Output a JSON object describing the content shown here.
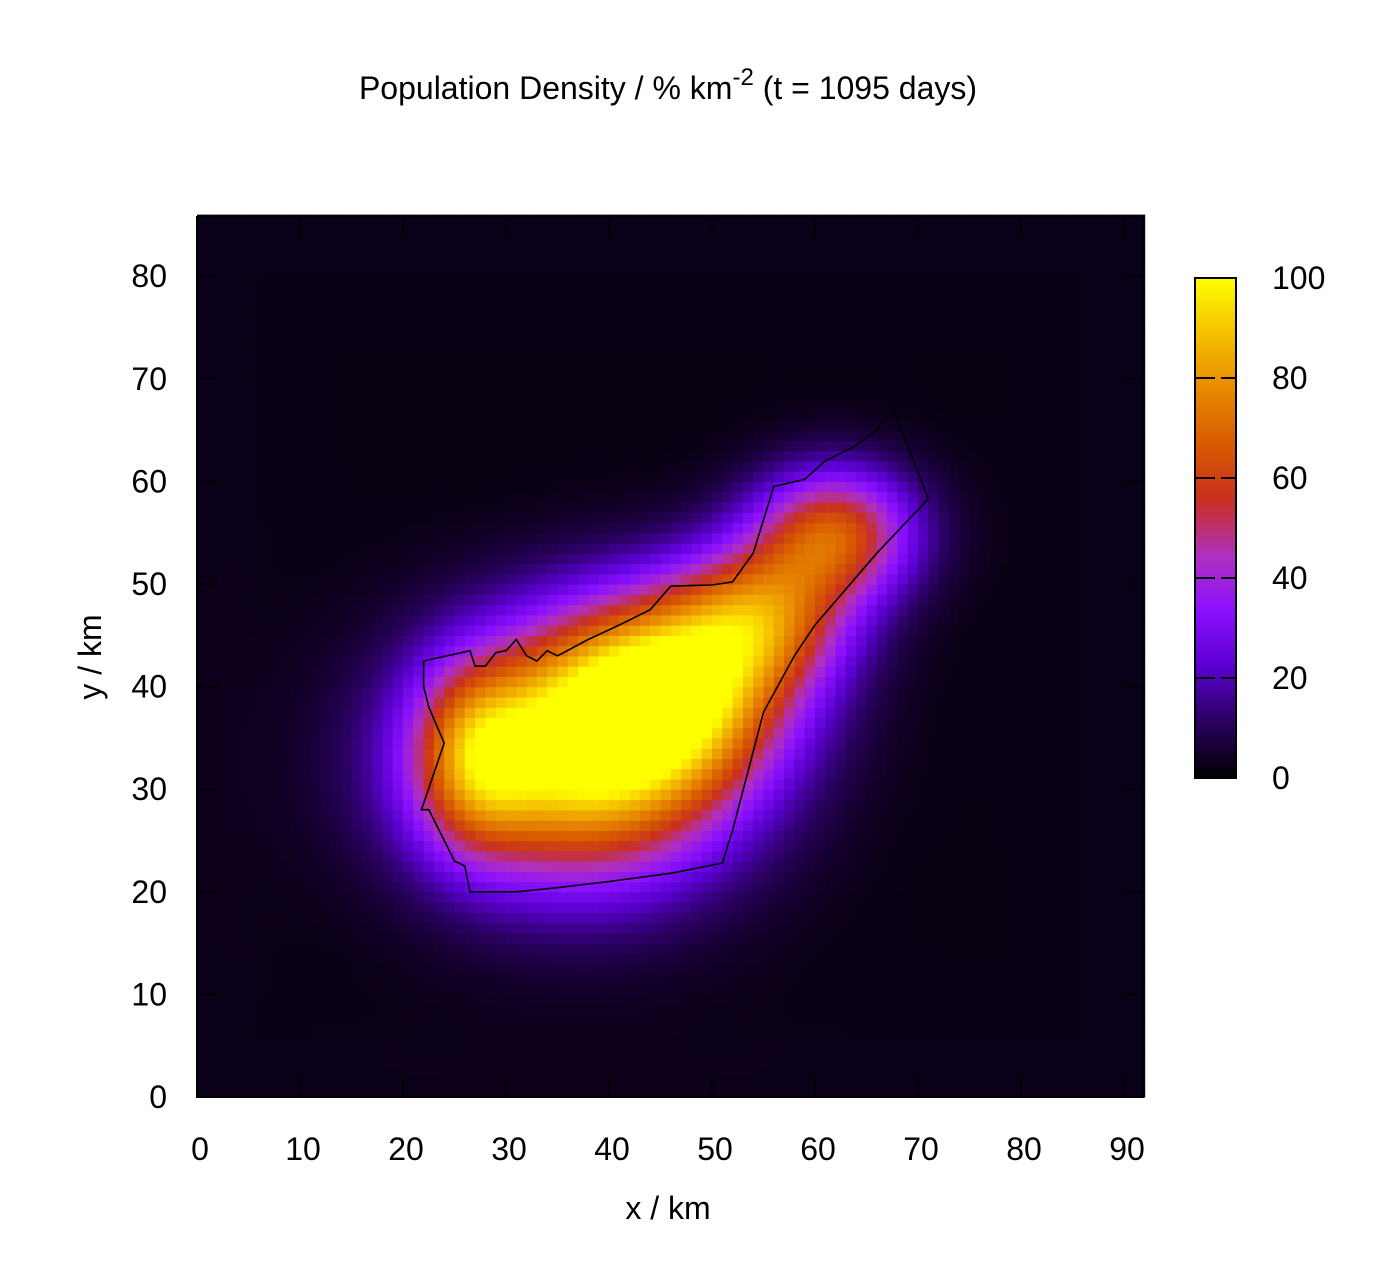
{
  "chart_data": {
    "type": "heatmap",
    "title": {
      "prefix": "Population Density / % km",
      "superscript": "-2",
      "suffix": " (t = 1095 days)"
    },
    "xlabel": "x / km",
    "ylabel": "y / km",
    "xlim": [
      0,
      92
    ],
    "ylim": [
      0,
      86
    ],
    "x_ticks": [
      0,
      10,
      20,
      30,
      40,
      50,
      60,
      70,
      80,
      90
    ],
    "y_ticks": [
      0,
      10,
      20,
      30,
      40,
      50,
      60,
      70,
      80
    ],
    "grid": false,
    "colorbar": {
      "position": "right",
      "min": 0,
      "max": 100,
      "ticks": [
        0,
        20,
        40,
        60,
        80,
        100
      ],
      "palette": [
        "#000000",
        "#2a0060",
        "#5a00d0",
        "#8a10ff",
        "#b030c0",
        "#c83020",
        "#d85a00",
        "#e88a00",
        "#f5c000",
        "#ffff00"
      ]
    },
    "density_field": {
      "description_of_model": "sum of gaussian blobs (km units), peak values in % per km^2",
      "background": 6,
      "blobs": [
        {
          "x": 37,
          "y": 33,
          "sx": 10.5,
          "sy": 8.5,
          "amp": 92
        },
        {
          "x": 46,
          "y": 40,
          "sx": 8,
          "sy": 6.5,
          "amp": 75
        },
        {
          "x": 55,
          "y": 47,
          "sx": 6,
          "sy": 5,
          "amp": 55
        },
        {
          "x": 62,
          "y": 55,
          "sx": 5.5,
          "sy": 4.5,
          "amp": 60
        },
        {
          "x": 27,
          "y": 33,
          "sx": 4,
          "sy": 6,
          "amp": 40
        }
      ]
    },
    "region_boundary": [
      [
        22.0,
        42.5
      ],
      [
        26.5,
        43.5
      ],
      [
        27.0,
        42.0
      ],
      [
        28.0,
        42.0
      ],
      [
        29.0,
        43.3
      ],
      [
        30.0,
        43.5
      ],
      [
        31.0,
        44.6
      ],
      [
        32.0,
        43.0
      ],
      [
        33.0,
        42.5
      ],
      [
        34.0,
        43.5
      ],
      [
        35.0,
        43.0
      ],
      [
        38.0,
        44.6
      ],
      [
        41.0,
        46.0
      ],
      [
        44.0,
        47.5
      ],
      [
        46.0,
        49.8
      ],
      [
        50.0,
        49.9
      ],
      [
        52.0,
        50.2
      ],
      [
        54.0,
        53.0
      ],
      [
        56.0,
        59.5
      ],
      [
        59.0,
        60.2
      ],
      [
        61.0,
        62.0
      ],
      [
        64.0,
        63.5
      ],
      [
        66.0,
        65.0
      ],
      [
        67.5,
        67.3
      ],
      [
        71.0,
        58.3
      ],
      [
        66.0,
        53.0
      ],
      [
        60.0,
        46.0
      ],
      [
        58.0,
        43.0
      ],
      [
        55.0,
        37.5
      ],
      [
        52.0,
        26.0
      ],
      [
        51.0,
        22.8
      ],
      [
        46.0,
        21.8
      ],
      [
        40.0,
        21.0
      ],
      [
        35.0,
        20.4
      ],
      [
        31.0,
        20.0
      ],
      [
        26.5,
        20.0
      ],
      [
        26.0,
        22.5
      ],
      [
        25.0,
        23.0
      ],
      [
        24.0,
        25.0
      ],
      [
        22.5,
        28.0
      ],
      [
        21.8,
        28.0
      ],
      [
        24.0,
        34.5
      ],
      [
        22.5,
        38.0
      ],
      [
        22.0,
        40.0
      ],
      [
        22.0,
        42.5
      ]
    ]
  }
}
